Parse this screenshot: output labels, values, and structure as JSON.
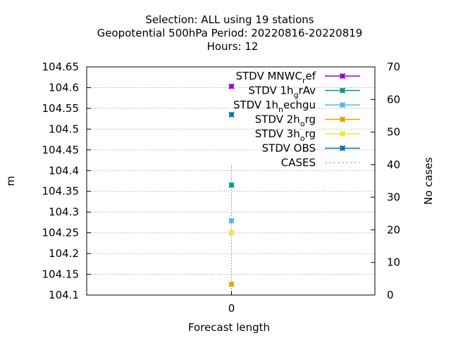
{
  "chart_data": {
    "type": "scatter",
    "title_lines": [
      "Selection: ALL using    19 stations",
      "Geopotential 500hPa   Period: 20220816-20220819",
      "Hours:  12"
    ],
    "xlabel": "Forecast length",
    "ylabel": "m",
    "y2label": "No cases",
    "x_categories": [
      "0"
    ],
    "ylim": [
      104.1,
      104.65
    ],
    "yticks": [
      "104.1",
      "104.15",
      "104.2",
      "104.25",
      "104.3",
      "104.35",
      "104.4",
      "104.45",
      "104.5",
      "104.55",
      "104.6",
      "104.65"
    ],
    "y2lim": [
      0,
      70
    ],
    "y2ticks": [
      "0",
      "10",
      "20",
      "30",
      "40",
      "50",
      "60",
      "70"
    ],
    "grid": true,
    "legend_position": "top-right",
    "series": [
      {
        "legend": {
          "pre": "STDV MNWC",
          "sub": "r",
          "post": "ef"
        },
        "color": "#9400d3",
        "x": 0,
        "y": 104.603
      },
      {
        "legend": {
          "pre": "STDV 1h",
          "sub": "g",
          "post": "rAv"
        },
        "color": "#009e73",
        "x": 0,
        "y": 104.365
      },
      {
        "legend": {
          "pre": "STDV 1h",
          "sub": "n",
          "post": "echgu"
        },
        "color": "#56b4e9",
        "x": 0,
        "y": 104.279
      },
      {
        "legend": {
          "pre": "STDV 2h",
          "sub": "o",
          "post": "rg"
        },
        "color": "#e69f00",
        "x": 0,
        "y": 104.126
      },
      {
        "legend": {
          "pre": "STDV 3h",
          "sub": "o",
          "post": "rg"
        },
        "color": "#f0e442",
        "x": 0,
        "y": 104.25
      },
      {
        "legend": {
          "pre": "STDV OBS",
          "sub": "",
          "post": ""
        },
        "color": "#0072b2",
        "x": 0,
        "y": 104.535
      }
    ],
    "cases": {
      "legend": "CASES",
      "color": "#a0a0a0",
      "x": 0,
      "value": 40
    }
  }
}
